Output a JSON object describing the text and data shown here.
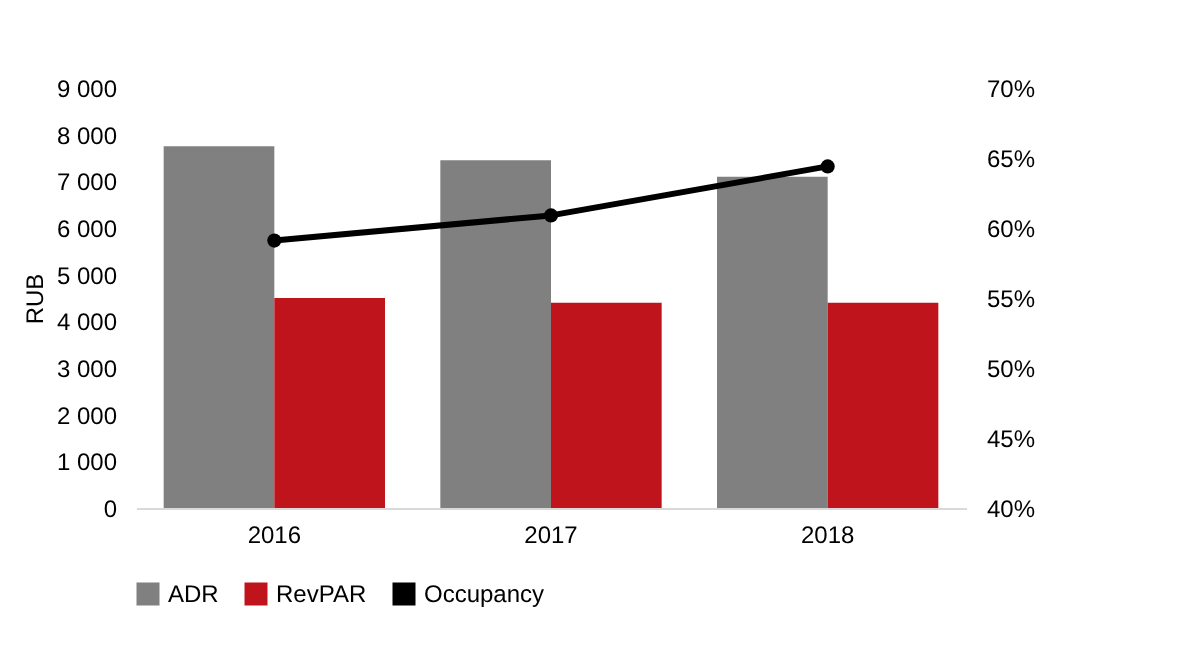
{
  "chart_data": {
    "type": "bar",
    "categories": [
      "2016",
      "2017",
      "2018"
    ],
    "ylabel": "RUB",
    "series": [
      {
        "name": "ADR",
        "color": "#808080",
        "values": [
          7750,
          7450,
          7100
        ]
      },
      {
        "name": "RevPAR",
        "color": "#c0141c",
        "values": [
          4500,
          4400,
          4400
        ]
      },
      {
        "name": "Occupancy",
        "type": "line",
        "axis": "y2",
        "color": "#000000",
        "values": [
          59.1,
          60.9,
          64.4
        ]
      }
    ],
    "ylim": [
      0,
      9000
    ],
    "yticks": [
      {
        "value": 0,
        "label": "0"
      },
      {
        "value": 1000,
        "label": "1 000"
      },
      {
        "value": 2000,
        "label": "2 000"
      },
      {
        "value": 3000,
        "label": "3 000"
      },
      {
        "value": 4000,
        "label": "4 000"
      },
      {
        "value": 5000,
        "label": "5 000"
      },
      {
        "value": 6000,
        "label": "6 000"
      },
      {
        "value": 7000,
        "label": "7 000"
      },
      {
        "value": 8000,
        "label": "8 000"
      },
      {
        "value": 9000,
        "label": "9 000"
      }
    ],
    "y2lim": [
      40,
      70
    ],
    "y2ticks": [
      {
        "value": 40,
        "label": "40%"
      },
      {
        "value": 45,
        "label": "45%"
      },
      {
        "value": 50,
        "label": "50%"
      },
      {
        "value": 55,
        "label": "55%"
      },
      {
        "value": 60,
        "label": "60%"
      },
      {
        "value": 65,
        "label": "65%"
      },
      {
        "value": 70,
        "label": "70%"
      }
    ],
    "legend": "bottom",
    "marker": "circle",
    "grid": false
  }
}
